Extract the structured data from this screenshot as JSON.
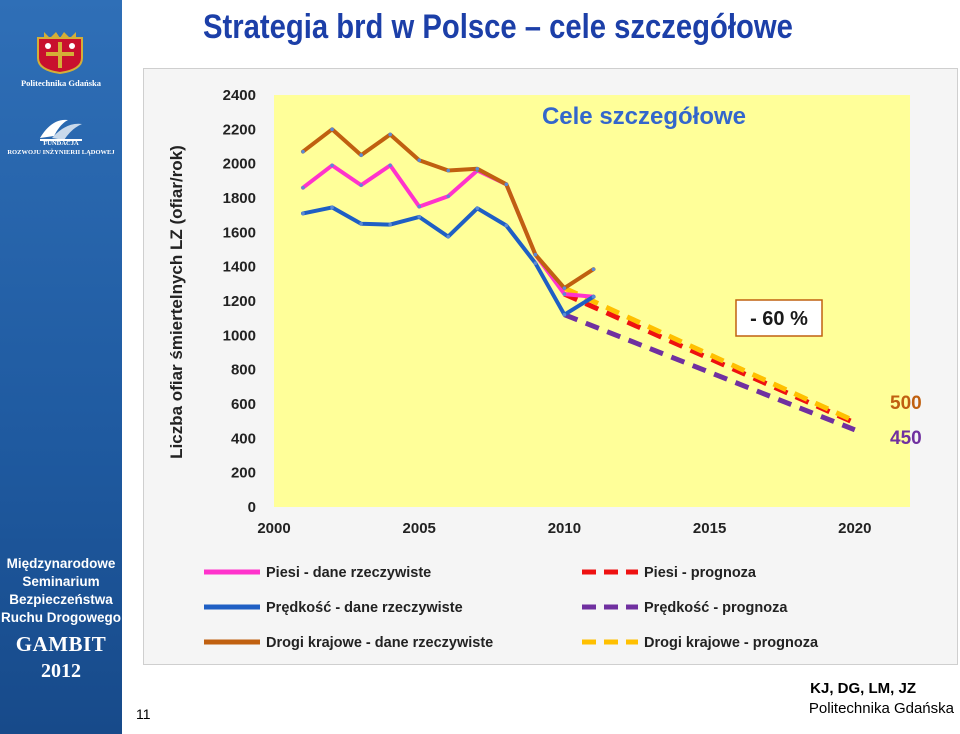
{
  "sidebar": {
    "institution": "Politechnika Gdańska",
    "foundation_line1": "FUNDACJA",
    "foundation_line2": "ROZWOJU INŻYNIERII LĄDOWEJ",
    "seminar": [
      "Międzynarodowe",
      "Seminarium",
      "Bezpieczeństwa",
      "Ruchu Drogowego"
    ],
    "event": "GAMBIT",
    "year": "2012",
    "colors": {
      "background": "#1f5aa0"
    }
  },
  "slide": {
    "title": "Strategia brd w Polsce – cele szczegółowe",
    "number": "11",
    "authors": "KJ, DG, LM, JZ",
    "affiliation": "Politechnika Gdańska"
  },
  "chart_data": {
    "type": "line",
    "title": "Cele szczegółowe",
    "ylabel": "Liczba ofiar śmiertelnych LZ (ofiar/rok)",
    "xlabel": "",
    "xlim": [
      2000,
      2021.9
    ],
    "ylim": [
      0,
      2400
    ],
    "xticks": [
      2000,
      2005,
      2010,
      2015,
      2020
    ],
    "yticks": [
      0,
      200,
      400,
      600,
      800,
      1000,
      1200,
      1400,
      1600,
      1800,
      2000,
      2200,
      2400
    ],
    "grid": false,
    "plot_background": "#ffff99",
    "legend_placement": "bottom",
    "series": [
      {
        "name": "Piesi - dane rzeczywiste",
        "style": "solid",
        "color": "#ff33cc",
        "x": [
          2001,
          2002,
          2003,
          2004,
          2005,
          2006,
          2007,
          2008,
          2009,
          2010,
          2011
        ],
        "y": [
          1860,
          1990,
          1875,
          1990,
          1750,
          1810,
          1960,
          1880,
          1470,
          1240,
          1225
        ]
      },
      {
        "name": "Prędkość - dane rzeczywiste",
        "style": "solid",
        "color": "#1f5fc4",
        "x": [
          2001,
          2002,
          2003,
          2004,
          2005,
          2006,
          2007,
          2008,
          2009,
          2010,
          2011
        ],
        "y": [
          1710,
          1745,
          1650,
          1645,
          1690,
          1575,
          1740,
          1640,
          1420,
          1120,
          1225
        ]
      },
      {
        "name": "Drogi krajowe - dane rzeczywiste",
        "style": "solid",
        "color": "#c06010",
        "x": [
          2001,
          2002,
          2003,
          2004,
          2005,
          2006,
          2007,
          2008,
          2009,
          2010,
          2011
        ],
        "y": [
          2070,
          2200,
          2050,
          2170,
          2020,
          1960,
          1970,
          1880,
          1470,
          1275,
          1385
        ]
      },
      {
        "name": "Piesi - prognoza",
        "style": "dashed",
        "color": "#ee1111",
        "x": [
          2010,
          2020
        ],
        "y": [
          1240,
          490
        ]
      },
      {
        "name": "Prędkość - prognoza",
        "style": "dashed",
        "color": "#7030a0",
        "x": [
          2010,
          2020
        ],
        "y": [
          1120,
          450
        ]
      },
      {
        "name": "Drogi krajowe - prognoza",
        "style": "dashed",
        "color": "#ffc000",
        "x": [
          2010,
          2020
        ],
        "y": [
          1275,
          500
        ]
      }
    ],
    "annotations": [
      {
        "text": "- 60 %",
        "boxed": true
      },
      {
        "text": "500",
        "x": 2021,
        "y": 500,
        "color": "#c06010"
      },
      {
        "text": "450",
        "x": 2021,
        "y": 450,
        "color": "#7030a0"
      }
    ]
  }
}
